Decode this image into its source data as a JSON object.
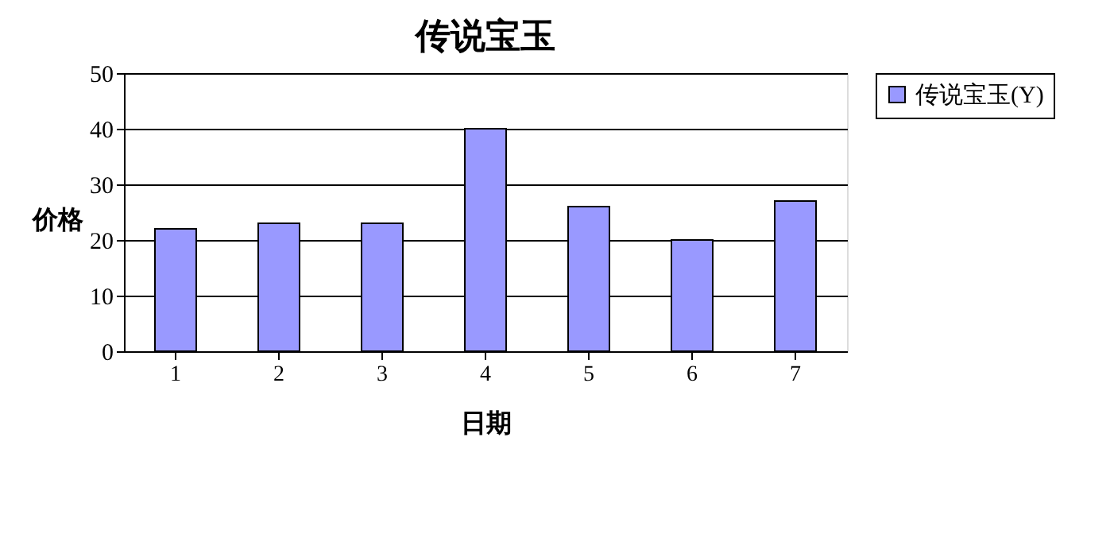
{
  "chart_data": {
    "type": "bar",
    "title": "传说宝玉",
    "xlabel": "日期",
    "ylabel": "价格",
    "categories": [
      "1",
      "2",
      "3",
      "4",
      "5",
      "6",
      "7"
    ],
    "series": [
      {
        "name": "传说宝玉(Y)",
        "color": "#9999ff",
        "values": [
          22,
          23,
          23,
          40,
          26,
          20,
          27
        ]
      }
    ],
    "ylim": [
      0,
      50
    ],
    "yticks": [
      0,
      10,
      20,
      30,
      40,
      50
    ],
    "grid": "y",
    "legend": "right"
  }
}
